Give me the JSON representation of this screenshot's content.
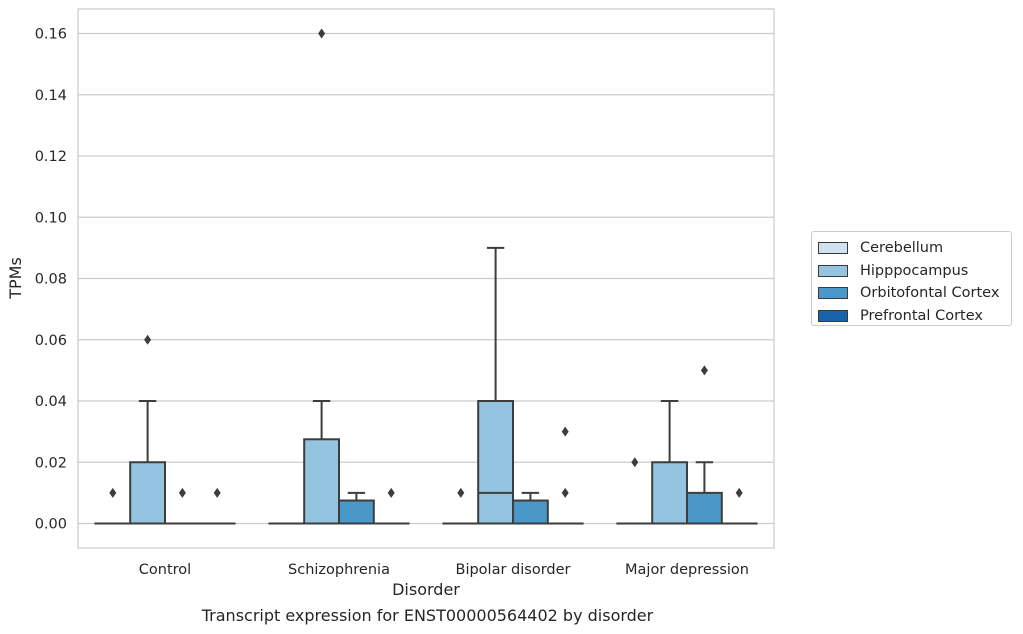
{
  "caption": "Transcript expression for ENST00000564402 by disorder",
  "chart_data": {
    "type": "boxplot",
    "xlabel": "Disorder",
    "ylabel": "TPMs",
    "ylim": [
      -0.008,
      0.168
    ],
    "yticks": [
      0.0,
      0.02,
      0.04,
      0.06,
      0.08,
      0.1,
      0.12,
      0.14,
      0.16
    ],
    "ytick_labels": [
      "0.00",
      "0.02",
      "0.04",
      "0.06",
      "0.08",
      "0.10",
      "0.12",
      "0.14",
      "0.16"
    ],
    "grid": true,
    "legend_position": "right",
    "categories": [
      "Control",
      "Schizophrenia",
      "Bipolar disorder",
      "Major depression"
    ],
    "series": [
      {
        "name": "Cerebellum",
        "color": "#d0e1f2",
        "boxes": [
          {
            "q1": 0,
            "median": 0,
            "q3": 0,
            "whisker_low": 0,
            "whisker_high": 0,
            "outliers": [
              0.01
            ]
          },
          {
            "q1": 0,
            "median": 0,
            "q3": 0,
            "whisker_low": 0,
            "whisker_high": 0,
            "outliers": []
          },
          {
            "q1": 0,
            "median": 0,
            "q3": 0,
            "whisker_low": 0,
            "whisker_high": 0,
            "outliers": [
              0.01
            ]
          },
          {
            "q1": 0,
            "median": 0,
            "q3": 0,
            "whisker_low": 0,
            "whisker_high": 0,
            "outliers": [
              0.02
            ]
          }
        ]
      },
      {
        "name": "Hipppocampus",
        "color": "#94c4df",
        "boxes": [
          {
            "q1": 0,
            "median": 0,
            "q3": 0.02,
            "whisker_low": 0,
            "whisker_high": 0.04,
            "outliers": [
              0.06
            ]
          },
          {
            "q1": 0,
            "median": 0,
            "q3": 0.0275,
            "whisker_low": 0,
            "whisker_high": 0.04,
            "outliers": [
              0.16
            ]
          },
          {
            "q1": 0,
            "median": 0.01,
            "q3": 0.04,
            "whisker_low": 0,
            "whisker_high": 0.09,
            "outliers": []
          },
          {
            "q1": 0,
            "median": 0,
            "q3": 0.02,
            "whisker_low": 0,
            "whisker_high": 0.04,
            "outliers": []
          }
        ]
      },
      {
        "name": "Orbitofontal Cortex",
        "color": "#4a98c9",
        "boxes": [
          {
            "q1": 0,
            "median": 0,
            "q3": 0,
            "whisker_low": 0,
            "whisker_high": 0,
            "outliers": [
              0.01
            ]
          },
          {
            "q1": 0,
            "median": 0,
            "q3": 0.0075,
            "whisker_low": 0,
            "whisker_high": 0.01,
            "outliers": []
          },
          {
            "q1": 0,
            "median": 0,
            "q3": 0.0075,
            "whisker_low": 0,
            "whisker_high": 0.01,
            "outliers": []
          },
          {
            "q1": 0,
            "median": 0,
            "q3": 0.01,
            "whisker_low": 0,
            "whisker_high": 0.02,
            "outliers": [
              0.05
            ]
          }
        ]
      },
      {
        "name": "Prefrontal Cortex",
        "color": "#1764ab",
        "boxes": [
          {
            "q1": 0,
            "median": 0,
            "q3": 0,
            "whisker_low": 0,
            "whisker_high": 0,
            "outliers": [
              0.01
            ]
          },
          {
            "q1": 0,
            "median": 0,
            "q3": 0,
            "whisker_low": 0,
            "whisker_high": 0,
            "outliers": [
              0.01
            ]
          },
          {
            "q1": 0,
            "median": 0,
            "q3": 0,
            "whisker_low": 0,
            "whisker_high": 0,
            "outliers": [
              0.01,
              0.03
            ]
          },
          {
            "q1": 0,
            "median": 0,
            "q3": 0,
            "whisker_low": 0,
            "whisker_high": 0,
            "outliers": [
              0.01
            ]
          }
        ]
      }
    ]
  }
}
